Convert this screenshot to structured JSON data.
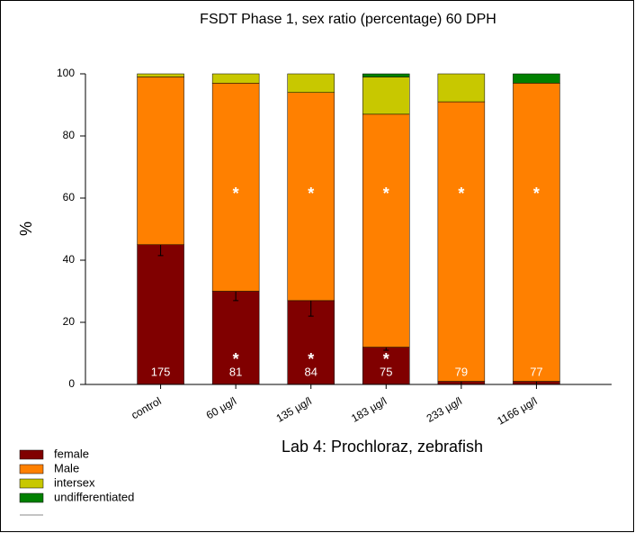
{
  "chart_data": {
    "type": "stacked-bar",
    "title": "FSDT Phase 1, sex ratio (percentage) 60 DPH",
    "subtitle": "Lab 4: Prochloraz, zebrafish",
    "y_label": "%",
    "categories": [
      "control",
      "60 µg/l",
      "135 µg/l",
      "183 µg/l",
      "233 µg/l",
      "1166 µg/l"
    ],
    "series": [
      {
        "name": "female",
        "color": "#800000",
        "values": [
          45,
          30,
          27,
          12,
          1,
          1
        ],
        "errors": [
          3.5,
          3,
          5,
          1,
          1,
          1
        ]
      },
      {
        "name": "Male",
        "color": "#ff8000",
        "values": [
          54,
          67,
          67,
          75,
          90,
          96
        ]
      },
      {
        "name": "intersex",
        "color": "#c8c800",
        "values": [
          1,
          3,
          6,
          12,
          9,
          0
        ]
      },
      {
        "name": "undifferentiated",
        "color": "#008000",
        "values": [
          0,
          0,
          0,
          1,
          0,
          3
        ]
      }
    ],
    "sample_sizes": [
      175,
      81,
      84,
      75,
      79,
      77
    ],
    "male_markers": [
      null,
      "*",
      "*",
      "*",
      "*",
      "*"
    ],
    "female_markers": [
      null,
      "*",
      "*",
      "*",
      null,
      null
    ],
    "ylim": [
      0,
      100
    ],
    "yticks": [
      0,
      20,
      40,
      60,
      80,
      100
    ]
  }
}
